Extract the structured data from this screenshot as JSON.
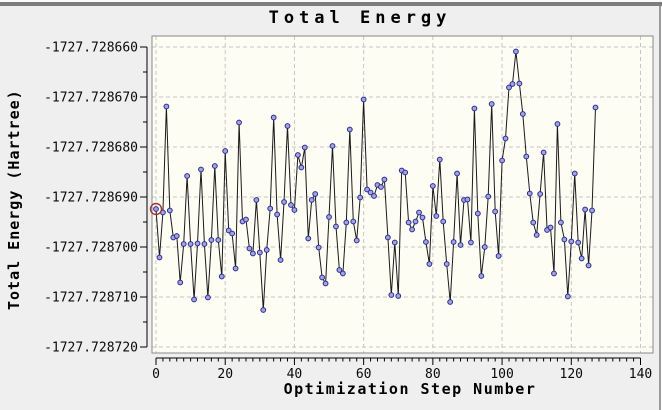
{
  "window": {
    "top_edge_color": "#7d7d7d",
    "background_color": "#efefef",
    "right_edge_color": "#9a9a9a"
  },
  "chart_data": {
    "type": "line",
    "title": "Total Energy",
    "xlabel": "Optimization Step Number",
    "ylabel": "Total Energy (Hartree)",
    "xlim": [
      0,
      140
    ],
    "x_major_tick": 20,
    "x_minor_tick": 2,
    "ylim": [
      -1727.72872,
      -1727.72866
    ],
    "y_major_tick": 1e-05,
    "y_minor_tick": 5e-06,
    "x_tick_labels": [
      "0",
      "20",
      "40",
      "60",
      "80",
      "100",
      "120",
      "140"
    ],
    "y_tick_labels": [
      "-1727.728660",
      "-1727.728670",
      "-1727.728680",
      "-1727.728690",
      "-1727.728700",
      "-1727.728710",
      "-1727.728720"
    ],
    "grid": "dashed-on-major-ticks",
    "legend": "none",
    "plot_bg_color": "#fdfdf4",
    "plot_border_color": "#8a8a8a",
    "grid_color": "#c6c6c6",
    "axis_color": "#000000",
    "line_color": "#1a1a1a",
    "marker": {
      "shape": "circle",
      "fill": "#a3a3de",
      "stroke": "#2c2c8e"
    },
    "highlight": {
      "index": 0,
      "ring_color": "#a23535"
    },
    "x_of_first_point": 0,
    "x_step_increment": 1,
    "values": [
      -1727.7286924,
      -1727.7287021,
      -1727.7286931,
      -1727.7286719,
      -1727.7286927,
      -1727.7286981,
      -1727.7286978,
      -1727.7287071,
      -1727.7286994,
      -1727.7286858,
      -1727.7286994,
      -1727.7287105,
      -1727.7286993,
      -1727.7286845,
      -1727.7286994,
      -1727.7287101,
      -1727.7286986,
      -1727.7286838,
      -1727.7286986,
      -1727.7287059,
      -1727.7286808,
      -1727.7286967,
      -1727.7286973,
      -1727.7287043,
      -1727.7286751,
      -1727.7286949,
      -1727.7286945,
      -1727.7287003,
      -1727.7287013,
      -1727.7286906,
      -1727.7287011,
      -1727.7287126,
      -1727.7287006,
      -1727.7286923,
      -1727.7286741,
      -1727.7286935,
      -1727.7287026,
      -1727.728691,
      -1727.7286758,
      -1727.7286916,
      -1727.7286926,
      -1727.7286816,
      -1727.7286841,
      -1727.7286801,
      -1727.7286983,
      -1727.7286906,
      -1727.7286894,
      -1727.7287001,
      -1727.7287061,
      -1727.7287073,
      -1727.728694,
      -1727.7286798,
      -1727.7286959,
      -1727.7287046,
      -1727.7287053,
      -1727.7286951,
      -1727.7286765,
      -1727.7286949,
      -1727.7286987,
      -1727.7286901,
      -1727.7286705,
      -1727.7286885,
      -1727.7286891,
      -1727.7286898,
      -1727.7286876,
      -1727.728688,
      -1727.7286865,
      -1727.7286981,
      -1727.7287096,
      -1727.7286991,
      -1727.7287098,
      -1727.7286847,
      -1727.7286851,
      -1727.7286951,
      -1727.7286965,
      -1727.7286949,
      -1727.7286931,
      -1727.7286941,
      -1727.728699,
      -1727.7287034,
      -1727.7286878,
      -1727.7286938,
      -1727.7286825,
      -1727.7286949,
      -1727.7287034,
      -1727.728711,
      -1727.728699,
      -1727.7286853,
      -1727.7286996,
      -1727.7286906,
      -1727.7286905,
      -1727.7286991,
      -1727.7286723,
      -1727.7286933,
      -1727.7287058,
      -1727.7287,
      -1727.7286899,
      -1727.7286714,
      -1727.7286929,
      -1727.7287018,
      -1727.7286827,
      -1727.7286783,
      -1727.7286681,
      -1727.7286674,
      -1727.7286609,
      -1727.7286673,
      -1727.7286734,
      -1727.7286819,
      -1727.7286893,
      -1727.7286951,
      -1727.7286976,
      -1727.7286894,
      -1727.7286811,
      -1727.7286966,
      -1727.7286961,
      -1727.7287053,
      -1727.7286754,
      -1727.7286951,
      -1727.7286985,
      -1727.7287099,
      -1727.7286989,
      -1727.7286853,
      -1727.7286991,
      -1727.7287023,
      -1727.7286925,
      -1727.7287037,
      -1727.7286927,
      -1727.7286721
    ]
  }
}
